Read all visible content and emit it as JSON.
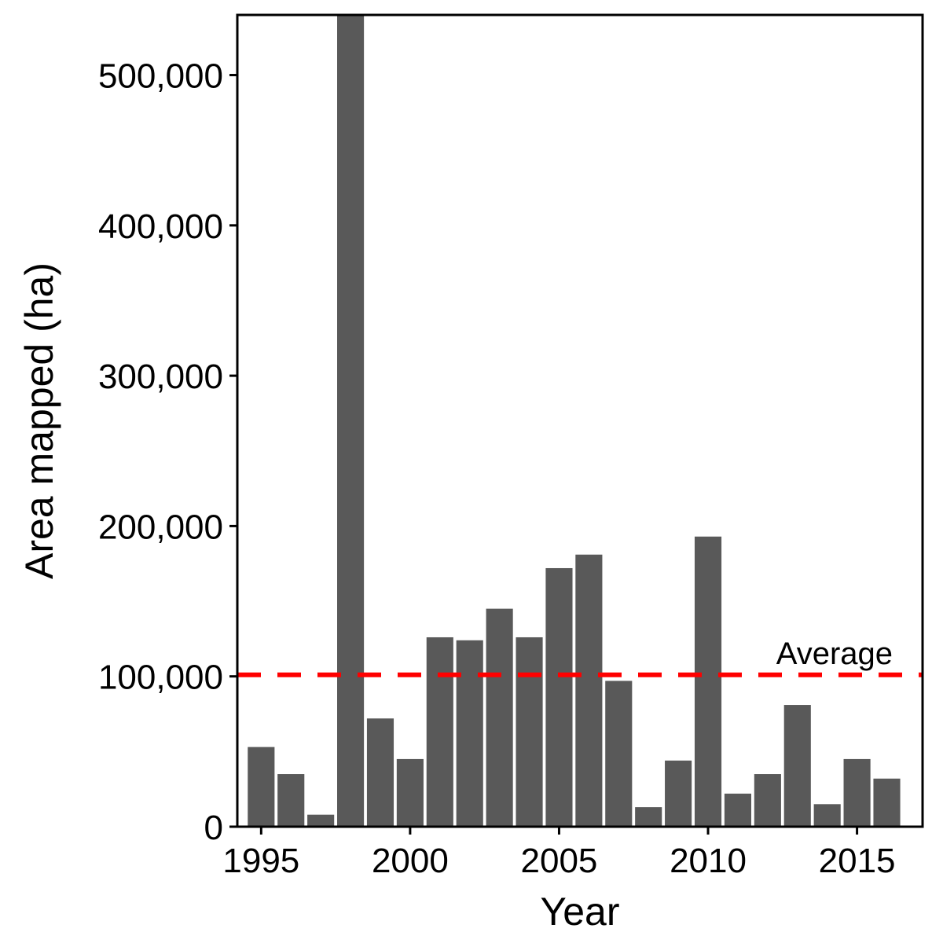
{
  "chart_data": {
    "type": "bar",
    "xlabel": "Year",
    "ylabel": "Area mapped (ha)",
    "x": [
      1995,
      1996,
      1997,
      1998,
      1999,
      2000,
      2001,
      2002,
      2003,
      2004,
      2005,
      2006,
      2007,
      2008,
      2009,
      2010,
      2011,
      2012,
      2013,
      2014,
      2015,
      2016
    ],
    "values": [
      53000,
      35000,
      8000,
      540000,
      72000,
      45000,
      126000,
      124000,
      145000,
      126000,
      172000,
      181000,
      97000,
      13000,
      44000,
      193000,
      22000,
      35000,
      81000,
      15000,
      45000,
      32000
    ],
    "ylim": [
      0,
      540000
    ],
    "xlim": [
      1994.2,
      2017.2
    ],
    "y_ticks": [
      0,
      100000,
      200000,
      300000,
      400000,
      500000
    ],
    "y_tick_labels": [
      "0",
      "100,000",
      "200,000",
      "300,000",
      "400,000",
      "500,000"
    ],
    "x_ticks": [
      1995,
      2000,
      2005,
      2010,
      2015
    ],
    "x_tick_labels": [
      "1995",
      "2000",
      "2005",
      "2010",
      "2015"
    ],
    "bar_color": "#595959",
    "reference_line": {
      "value": 101000,
      "label": "Average",
      "color": "#ff0000",
      "style": "dashed"
    },
    "grid": false
  }
}
